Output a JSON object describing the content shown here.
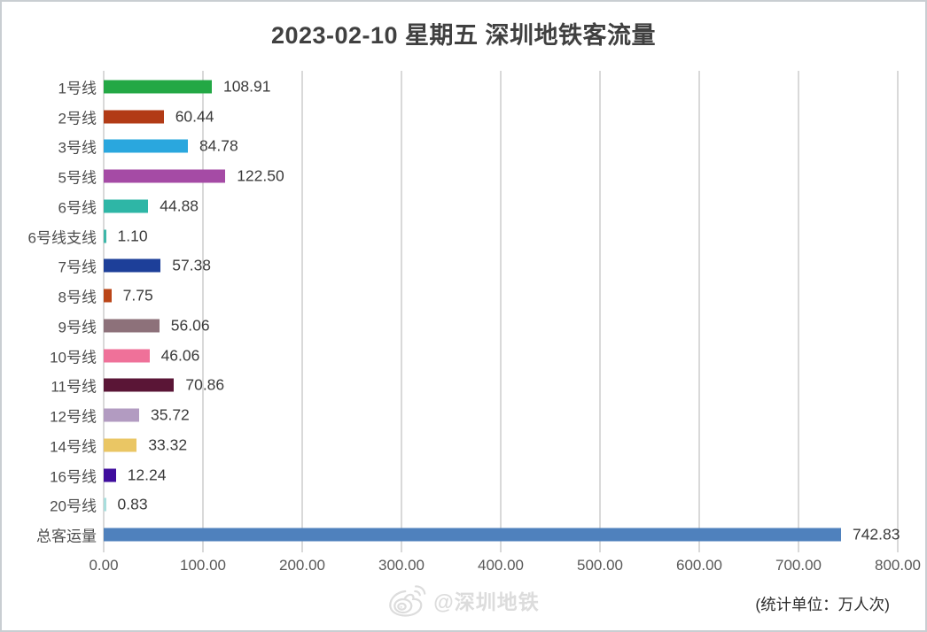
{
  "chart_data": {
    "type": "bar",
    "orientation": "horizontal",
    "title": "2023-02-10 星期五 深圳地铁客流量",
    "categories": [
      "1号线",
      "2号线",
      "3号线",
      "5号线",
      "6号线",
      "6号线支线",
      "7号线",
      "8号线",
      "9号线",
      "10号线",
      "11号线",
      "12号线",
      "14号线",
      "16号线",
      "20号线",
      "总客运量"
    ],
    "values": [
      108.91,
      60.44,
      84.78,
      122.5,
      44.88,
      1.1,
      57.38,
      7.75,
      56.06,
      46.06,
      70.86,
      35.72,
      33.32,
      12.24,
      0.83,
      742.83
    ],
    "value_labels": [
      "108.91",
      "60.44",
      "84.78",
      "122.50",
      "44.88",
      "1.10",
      "57.38",
      "7.75",
      "56.06",
      "46.06",
      "70.86",
      "35.72",
      "33.32",
      "12.24",
      "0.83",
      "742.83"
    ],
    "bar_colors": [
      "#23a845",
      "#b23b16",
      "#2aa7de",
      "#a54ba5",
      "#2eb6a6",
      "#3db7a9",
      "#1d3f99",
      "#ba4517",
      "#8d717a",
      "#ef7199",
      "#5a1536",
      "#b29bc1",
      "#eac664",
      "#3f0d9d",
      "#a9dedd",
      "#4f81bd"
    ],
    "xlim": [
      0,
      800
    ],
    "x_ticks": [
      "0.00",
      "100.00",
      "200.00",
      "300.00",
      "400.00",
      "500.00",
      "600.00",
      "700.00",
      "800.00"
    ],
    "grid": true,
    "gridline_color": "#d9d9d9",
    "unit_note": "(统计单位：万人次)",
    "watermark": "@深圳地铁",
    "watermark_icon": "weibo-icon"
  }
}
